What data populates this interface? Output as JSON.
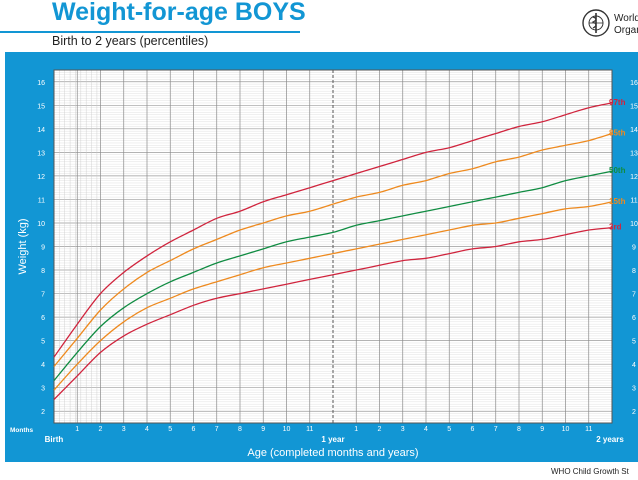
{
  "header": {
    "title": "Weight-for-age BOYS",
    "subtitle": "Birth to 2 years (percentiles)",
    "org_lines": [
      "World",
      "Organ"
    ],
    "logo_icon": "who-emblem-icon"
  },
  "footer": {
    "text": "WHO Child Growth St"
  },
  "colors": {
    "panel": "#1296d4",
    "p97": "#d0243d",
    "p85": "#ee8a1f",
    "p50": "#108c42",
    "p15": "#ee8a1f",
    "p3": "#d0243d"
  },
  "chart_data": {
    "type": "line",
    "ylabel": "Weight (kg)",
    "xlabel": "Age (completed months and years)",
    "months_label": "Months",
    "xlim": [
      0,
      24
    ],
    "ylim": [
      1.5,
      16.5
    ],
    "grid": true,
    "x_tick_labels": [
      {
        "x": 0,
        "label": "Birth",
        "bold": true
      },
      {
        "x": 1,
        "label": "1"
      },
      {
        "x": 2,
        "label": "2"
      },
      {
        "x": 3,
        "label": "3"
      },
      {
        "x": 4,
        "label": "4"
      },
      {
        "x": 5,
        "label": "5"
      },
      {
        "x": 6,
        "label": "6"
      },
      {
        "x": 7,
        "label": "7"
      },
      {
        "x": 8,
        "label": "8"
      },
      {
        "x": 9,
        "label": "9"
      },
      {
        "x": 10,
        "label": "10"
      },
      {
        "x": 11,
        "label": "11"
      },
      {
        "x": 12,
        "label": "1 year",
        "bold": true
      },
      {
        "x": 13,
        "label": "1"
      },
      {
        "x": 14,
        "label": "2"
      },
      {
        "x": 15,
        "label": "3"
      },
      {
        "x": 16,
        "label": "4"
      },
      {
        "x": 17,
        "label": "5"
      },
      {
        "x": 18,
        "label": "6"
      },
      {
        "x": 19,
        "label": "7"
      },
      {
        "x": 20,
        "label": "8"
      },
      {
        "x": 21,
        "label": "9"
      },
      {
        "x": 22,
        "label": "10"
      },
      {
        "x": 23,
        "label": "11"
      },
      {
        "x": 24,
        "label": "2 years",
        "bold": true
      }
    ],
    "y_ticks": [
      2,
      3,
      4,
      5,
      6,
      7,
      8,
      9,
      10,
      11,
      12,
      13,
      14,
      15,
      16
    ],
    "x": [
      0,
      1,
      2,
      3,
      4,
      5,
      6,
      7,
      8,
      9,
      10,
      11,
      12,
      13,
      14,
      15,
      16,
      17,
      18,
      19,
      20,
      21,
      22,
      23,
      24
    ],
    "series": [
      {
        "name": "97th",
        "color_key": "p97",
        "values": [
          4.3,
          5.7,
          7.0,
          7.9,
          8.6,
          9.2,
          9.7,
          10.2,
          10.5,
          10.9,
          11.2,
          11.5,
          11.8,
          12.1,
          12.4,
          12.7,
          13.0,
          13.2,
          13.5,
          13.8,
          14.1,
          14.3,
          14.6,
          14.9,
          15.1
        ]
      },
      {
        "name": "85th",
        "color_key": "p85",
        "values": [
          3.9,
          5.1,
          6.3,
          7.2,
          7.9,
          8.4,
          8.9,
          9.3,
          9.7,
          10.0,
          10.3,
          10.5,
          10.8,
          11.1,
          11.3,
          11.6,
          11.8,
          12.1,
          12.3,
          12.6,
          12.8,
          13.1,
          13.3,
          13.5,
          13.8
        ]
      },
      {
        "name": "50th",
        "color_key": "p50",
        "values": [
          3.3,
          4.5,
          5.6,
          6.4,
          7.0,
          7.5,
          7.9,
          8.3,
          8.6,
          8.9,
          9.2,
          9.4,
          9.6,
          9.9,
          10.1,
          10.3,
          10.5,
          10.7,
          10.9,
          11.1,
          11.3,
          11.5,
          11.8,
          12.0,
          12.2
        ]
      },
      {
        "name": "15th",
        "color_key": "p15",
        "values": [
          2.9,
          4.0,
          5.0,
          5.8,
          6.4,
          6.8,
          7.2,
          7.5,
          7.8,
          8.1,
          8.3,
          8.5,
          8.7,
          8.9,
          9.1,
          9.3,
          9.5,
          9.7,
          9.9,
          10.0,
          10.2,
          10.4,
          10.6,
          10.7,
          10.9
        ]
      },
      {
        "name": "3rd",
        "color_key": "p3",
        "values": [
          2.5,
          3.5,
          4.5,
          5.2,
          5.7,
          6.1,
          6.5,
          6.8,
          7.0,
          7.2,
          7.4,
          7.6,
          7.8,
          8.0,
          8.2,
          8.4,
          8.5,
          8.7,
          8.9,
          9.0,
          9.2,
          9.3,
          9.5,
          9.7,
          9.8
        ]
      }
    ]
  }
}
